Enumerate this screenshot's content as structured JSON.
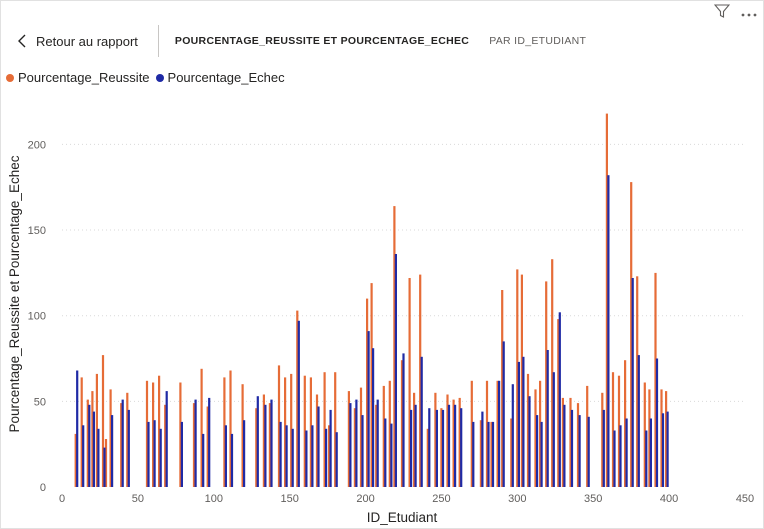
{
  "toolbar": {
    "filter_icon": "filter-icon",
    "more_icon": "more-options-icon"
  },
  "header": {
    "back_label": "Retour au rapport",
    "title": "POURCENTAGE_REUSSITE ET POURCENTAGE_ECHEC",
    "subtitle": "PAR ID_ETUDIANT"
  },
  "colors": {
    "reussite": "#E66C37",
    "echec": "#1F2AA5",
    "grid": "#d9d9d9",
    "axis_text": "#605e5c"
  },
  "chart_data": {
    "type": "bar",
    "xlabel": "ID_Etudiant",
    "ylabel": "Pourcentage_Reussite et Pourcentage_Echec",
    "xlim": [
      0,
      450
    ],
    "ylim": [
      0,
      230
    ],
    "x_ticks": [
      0,
      50,
      100,
      150,
      200,
      250,
      300,
      350,
      400,
      450
    ],
    "y_ticks": [
      0,
      50,
      100,
      150,
      200
    ],
    "grid": true,
    "legend_position": "top-left",
    "series": [
      {
        "name": "Pourcentage_Reussite",
        "color": "#E66C37",
        "points": [
          [
            9,
            31
          ],
          [
            13,
            64
          ],
          [
            17,
            51
          ],
          [
            20,
            56
          ],
          [
            23,
            66
          ],
          [
            27,
            77
          ],
          [
            29,
            28
          ],
          [
            32,
            57
          ],
          [
            39,
            49
          ],
          [
            43,
            55
          ],
          [
            56,
            62
          ],
          [
            60,
            61
          ],
          [
            64,
            65
          ],
          [
            68,
            48
          ],
          [
            78,
            61
          ],
          [
            87,
            49
          ],
          [
            92,
            69
          ],
          [
            96,
            47
          ],
          [
            107,
            64
          ],
          [
            111,
            68
          ],
          [
            119,
            60
          ],
          [
            128,
            46
          ],
          [
            133,
            54
          ],
          [
            137,
            49
          ],
          [
            143,
            71
          ],
          [
            147,
            64
          ],
          [
            151,
            66
          ],
          [
            155,
            103
          ],
          [
            160,
            65
          ],
          [
            164,
            64
          ],
          [
            168,
            54
          ],
          [
            173,
            67
          ],
          [
            176,
            36
          ],
          [
            180,
            67
          ],
          [
            189,
            56
          ],
          [
            193,
            46
          ],
          [
            197,
            58
          ],
          [
            201,
            110
          ],
          [
            204,
            119
          ],
          [
            207,
            48
          ],
          [
            212,
            59
          ],
          [
            216,
            62
          ],
          [
            219,
            164
          ],
          [
            224,
            74
          ],
          [
            229,
            122
          ],
          [
            232,
            55
          ],
          [
            236,
            124
          ],
          [
            241,
            34
          ],
          [
            246,
            55
          ],
          [
            250,
            46
          ],
          [
            254,
            54
          ],
          [
            258,
            51
          ],
          [
            262,
            52
          ],
          [
            270,
            62
          ],
          [
            276,
            39
          ],
          [
            280,
            62
          ],
          [
            283,
            38
          ],
          [
            287,
            62
          ],
          [
            290,
            115
          ],
          [
            296,
            40
          ],
          [
            300,
            127
          ],
          [
            303,
            124
          ],
          [
            307,
            66
          ],
          [
            312,
            57
          ],
          [
            315,
            62
          ],
          [
            319,
            120
          ],
          [
            323,
            133
          ],
          [
            327,
            98
          ],
          [
            330,
            52
          ],
          [
            335,
            52
          ],
          [
            340,
            49
          ],
          [
            346,
            59
          ],
          [
            356,
            55
          ],
          [
            359,
            218
          ],
          [
            363,
            67
          ],
          [
            367,
            65
          ],
          [
            371,
            74
          ],
          [
            375,
            178
          ],
          [
            379,
            123
          ],
          [
            384,
            61
          ],
          [
            387,
            57
          ],
          [
            391,
            125
          ],
          [
            395,
            57
          ],
          [
            398,
            56
          ]
        ]
      },
      {
        "name": "Pourcentage_Echec",
        "color": "#1F2AA5",
        "points": [
          [
            10,
            68
          ],
          [
            14,
            36
          ],
          [
            18,
            48
          ],
          [
            21,
            44
          ],
          [
            24,
            34
          ],
          [
            28,
            23
          ],
          [
            33,
            42
          ],
          [
            40,
            51
          ],
          [
            44,
            45
          ],
          [
            57,
            38
          ],
          [
            61,
            39
          ],
          [
            65,
            34
          ],
          [
            69,
            56
          ],
          [
            79,
            38
          ],
          [
            88,
            51
          ],
          [
            93,
            31
          ],
          [
            97,
            52
          ],
          [
            108,
            36
          ],
          [
            112,
            31
          ],
          [
            120,
            39
          ],
          [
            129,
            53
          ],
          [
            134,
            48
          ],
          [
            138,
            51
          ],
          [
            144,
            38
          ],
          [
            148,
            36
          ],
          [
            152,
            34
          ],
          [
            156,
            97
          ],
          [
            161,
            33
          ],
          [
            165,
            36
          ],
          [
            169,
            47
          ],
          [
            174,
            34
          ],
          [
            177,
            45
          ],
          [
            181,
            32
          ],
          [
            190,
            49
          ],
          [
            194,
            51
          ],
          [
            198,
            42
          ],
          [
            202,
            91
          ],
          [
            205,
            81
          ],
          [
            208,
            51
          ],
          [
            213,
            40
          ],
          [
            217,
            37
          ],
          [
            220,
            136
          ],
          [
            225,
            78
          ],
          [
            230,
            45
          ],
          [
            233,
            48
          ],
          [
            237,
            76
          ],
          [
            242,
            46
          ],
          [
            247,
            45
          ],
          [
            251,
            45
          ],
          [
            255,
            48
          ],
          [
            259,
            48
          ],
          [
            263,
            46
          ],
          [
            271,
            38
          ],
          [
            277,
            44
          ],
          [
            281,
            38
          ],
          [
            284,
            38
          ],
          [
            288,
            62
          ],
          [
            291,
            85
          ],
          [
            297,
            60
          ],
          [
            301,
            73
          ],
          [
            304,
            76
          ],
          [
            308,
            53
          ],
          [
            313,
            42
          ],
          [
            316,
            38
          ],
          [
            320,
            80
          ],
          [
            324,
            67
          ],
          [
            328,
            102
          ],
          [
            331,
            48
          ],
          [
            336,
            45
          ],
          [
            341,
            42
          ],
          [
            347,
            41
          ],
          [
            357,
            45
          ],
          [
            360,
            182
          ],
          [
            364,
            33
          ],
          [
            368,
            36
          ],
          [
            372,
            40
          ],
          [
            376,
            122
          ],
          [
            380,
            77
          ],
          [
            385,
            33
          ],
          [
            388,
            40
          ],
          [
            392,
            75
          ],
          [
            396,
            43
          ],
          [
            399,
            44
          ]
        ]
      }
    ]
  }
}
